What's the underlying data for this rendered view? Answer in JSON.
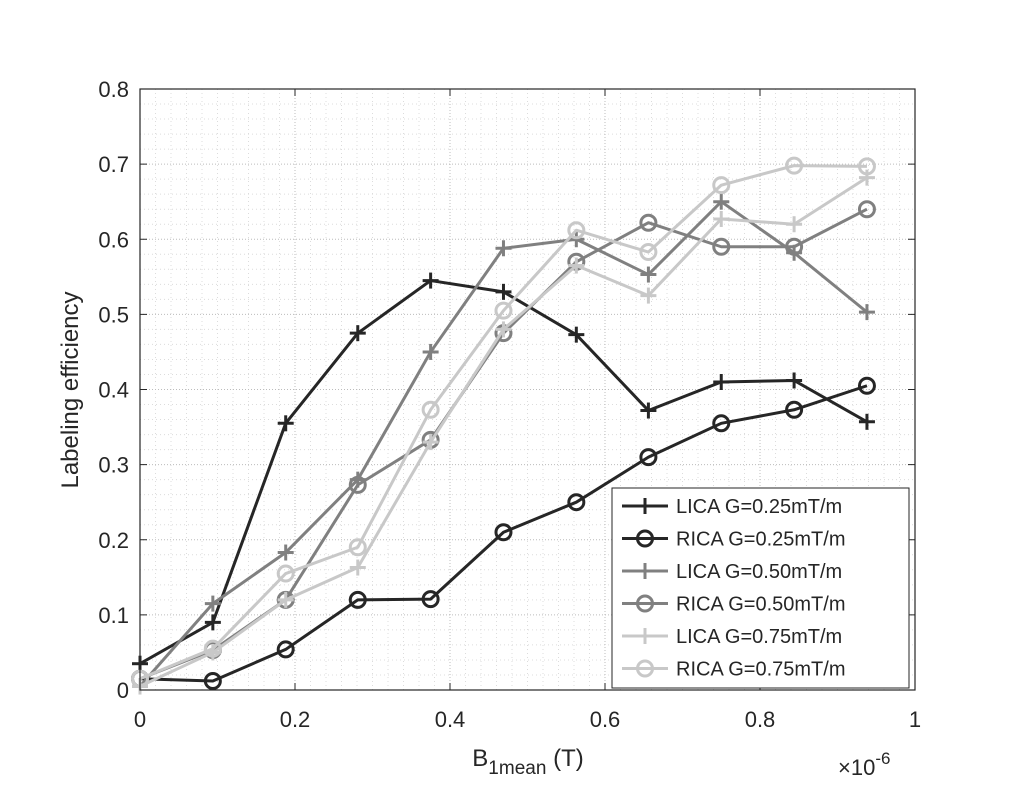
{
  "chart_data": {
    "type": "line",
    "title": "",
    "xlabel": "B",
    "xlabel_sub": "1mean",
    "xlabel_unit": " (T)",
    "ylabel": "Labeling efficiency",
    "x_multiplier_prefix": "×10",
    "x_multiplier_exp": "-6",
    "xlim": [
      0,
      1
    ],
    "ylim": [
      0,
      0.8
    ],
    "xticks": [
      0,
      0.2,
      0.4,
      0.6,
      0.8,
      1
    ],
    "xtick_labels": [
      "0",
      "0.2",
      "0.4",
      "0.6",
      "0.8",
      "1"
    ],
    "yticks": [
      0,
      0.1,
      0.2,
      0.3,
      0.4,
      0.5,
      0.6,
      0.7,
      0.8
    ],
    "ytick_labels": [
      "0",
      "0.1",
      "0.2",
      "0.3",
      "0.4",
      "0.5",
      "0.6",
      "0.7",
      "0.8"
    ],
    "grid": true,
    "minor_grid": true,
    "legend_position": "bottom-right",
    "x": [
      0,
      0.094,
      0.188,
      0.281,
      0.375,
      0.469,
      0.563,
      0.656,
      0.75,
      0.844,
      0.938
    ],
    "series": [
      {
        "name": "LICA G=0.25mT/m",
        "marker": "plus",
        "color": "#262626",
        "values": [
          0.035,
          0.09,
          0.355,
          0.475,
          0.545,
          0.53,
          0.473,
          0.372,
          0.41,
          0.412,
          0.357
        ]
      },
      {
        "name": "RICA G=0.25mT/m",
        "marker": "circle",
        "color": "#262626",
        "values": [
          0.015,
          0.012,
          0.054,
          0.12,
          0.121,
          0.21,
          0.25,
          0.31,
          0.355,
          0.373,
          0.405
        ]
      },
      {
        "name": "LICA G=0.50mT/m",
        "marker": "plus",
        "color": "#808080",
        "values": [
          0.005,
          0.115,
          0.183,
          0.28,
          0.45,
          0.588,
          0.6,
          0.553,
          0.65,
          0.582,
          0.503
        ]
      },
      {
        "name": "RICA G=0.50mT/m",
        "marker": "circle",
        "color": "#808080",
        "values": [
          0.015,
          0.053,
          0.12,
          0.273,
          0.333,
          0.475,
          0.57,
          0.622,
          0.59,
          0.59,
          0.64
        ]
      },
      {
        "name": "LICA G=0.75mT/m",
        "marker": "plus",
        "color": "#c8c8c8",
        "values": [
          0.005,
          0.05,
          0.12,
          0.163,
          0.33,
          0.48,
          0.565,
          0.525,
          0.627,
          0.62,
          0.682
        ]
      },
      {
        "name": "RICA G=0.75mT/m",
        "marker": "circle",
        "color": "#c8c8c8",
        "values": [
          0.015,
          0.055,
          0.155,
          0.19,
          0.373,
          0.505,
          0.612,
          0.583,
          0.672,
          0.698,
          0.697
        ]
      }
    ]
  }
}
